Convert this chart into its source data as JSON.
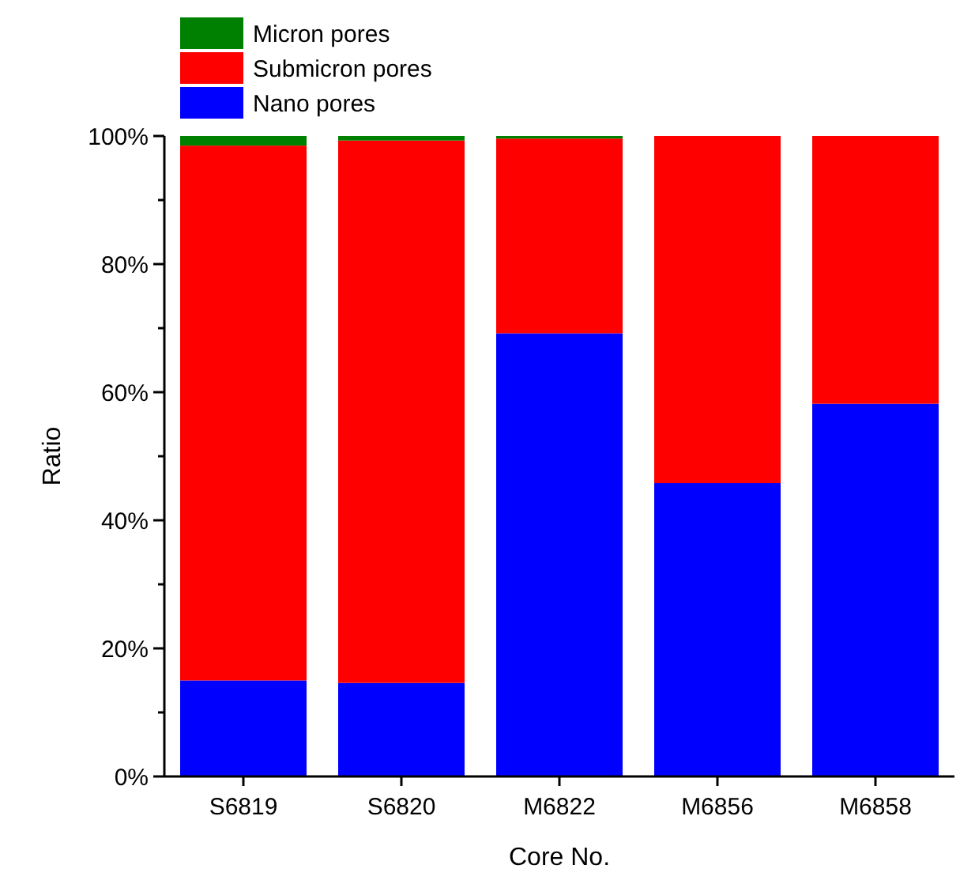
{
  "chart_data": {
    "type": "bar",
    "stacked": true,
    "xlabel": "Core No.",
    "ylabel": "Ratio",
    "categories": [
      "S6819",
      "S6820",
      "M6822",
      "M6856",
      "M6858"
    ],
    "series": [
      {
        "name": "Nano pores",
        "color": "#0000ff",
        "values": [
          15.0,
          14.6,
          69.2,
          45.8,
          58.2
        ]
      },
      {
        "name": "Submicron pores",
        "color": "#ff0000",
        "values": [
          83.5,
          84.7,
          30.4,
          54.2,
          41.8
        ]
      },
      {
        "name": "Micron pores",
        "color": "#008000",
        "values": [
          1.5,
          0.7,
          0.4,
          0,
          0
        ]
      }
    ],
    "ylim": [
      0,
      100
    ],
    "yticks": [
      {
        "value": 0,
        "label": "0%"
      },
      {
        "value": 10,
        "label": null
      },
      {
        "value": 20,
        "label": "20%"
      },
      {
        "value": 30,
        "label": null
      },
      {
        "value": 40,
        "label": "40%"
      },
      {
        "value": 50,
        "label": null
      },
      {
        "value": 60,
        "label": "60%"
      },
      {
        "value": 70,
        "label": null
      },
      {
        "value": 80,
        "label": "80%"
      },
      {
        "value": 90,
        "label": null
      },
      {
        "value": 100,
        "label": "100%"
      }
    ],
    "legend": "top left"
  }
}
